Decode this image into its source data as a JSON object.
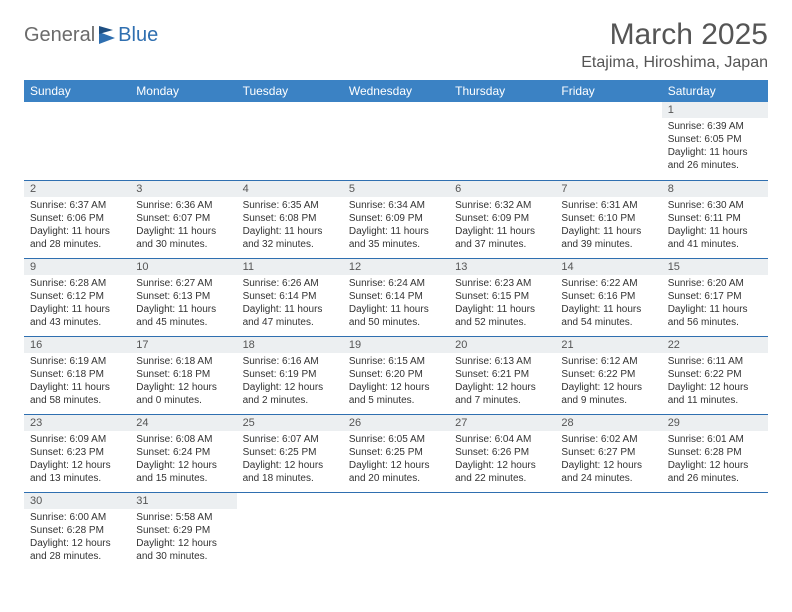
{
  "logo": {
    "part1": "General",
    "part2": "Blue"
  },
  "title": "March 2025",
  "location": "Etajima, Hiroshima, Japan",
  "colors": {
    "header_bg": "#3b82c4",
    "divider": "#2f6fb0",
    "daynum_bg": "#eceff1",
    "text": "#333333",
    "title_text": "#555555"
  },
  "layout": {
    "columns": 7,
    "rows": 6,
    "fontsize_header": 12,
    "fontsize_body": 10,
    "fontsize_title": 30,
    "fontsize_location": 16
  },
  "weekdays": [
    "Sunday",
    "Monday",
    "Tuesday",
    "Wednesday",
    "Thursday",
    "Friday",
    "Saturday"
  ],
  "weeks": [
    [
      null,
      null,
      null,
      null,
      null,
      null,
      {
        "n": "1",
        "sr": "6:39 AM",
        "ss": "6:05 PM",
        "dl": "11 hours and 26 minutes."
      }
    ],
    [
      {
        "n": "2",
        "sr": "6:37 AM",
        "ss": "6:06 PM",
        "dl": "11 hours and 28 minutes."
      },
      {
        "n": "3",
        "sr": "6:36 AM",
        "ss": "6:07 PM",
        "dl": "11 hours and 30 minutes."
      },
      {
        "n": "4",
        "sr": "6:35 AM",
        "ss": "6:08 PM",
        "dl": "11 hours and 32 minutes."
      },
      {
        "n": "5",
        "sr": "6:34 AM",
        "ss": "6:09 PM",
        "dl": "11 hours and 35 minutes."
      },
      {
        "n": "6",
        "sr": "6:32 AM",
        "ss": "6:09 PM",
        "dl": "11 hours and 37 minutes."
      },
      {
        "n": "7",
        "sr": "6:31 AM",
        "ss": "6:10 PM",
        "dl": "11 hours and 39 minutes."
      },
      {
        "n": "8",
        "sr": "6:30 AM",
        "ss": "6:11 PM",
        "dl": "11 hours and 41 minutes."
      }
    ],
    [
      {
        "n": "9",
        "sr": "6:28 AM",
        "ss": "6:12 PM",
        "dl": "11 hours and 43 minutes."
      },
      {
        "n": "10",
        "sr": "6:27 AM",
        "ss": "6:13 PM",
        "dl": "11 hours and 45 minutes."
      },
      {
        "n": "11",
        "sr": "6:26 AM",
        "ss": "6:14 PM",
        "dl": "11 hours and 47 minutes."
      },
      {
        "n": "12",
        "sr": "6:24 AM",
        "ss": "6:14 PM",
        "dl": "11 hours and 50 minutes."
      },
      {
        "n": "13",
        "sr": "6:23 AM",
        "ss": "6:15 PM",
        "dl": "11 hours and 52 minutes."
      },
      {
        "n": "14",
        "sr": "6:22 AM",
        "ss": "6:16 PM",
        "dl": "11 hours and 54 minutes."
      },
      {
        "n": "15",
        "sr": "6:20 AM",
        "ss": "6:17 PM",
        "dl": "11 hours and 56 minutes."
      }
    ],
    [
      {
        "n": "16",
        "sr": "6:19 AM",
        "ss": "6:18 PM",
        "dl": "11 hours and 58 minutes."
      },
      {
        "n": "17",
        "sr": "6:18 AM",
        "ss": "6:18 PM",
        "dl": "12 hours and 0 minutes."
      },
      {
        "n": "18",
        "sr": "6:16 AM",
        "ss": "6:19 PM",
        "dl": "12 hours and 2 minutes."
      },
      {
        "n": "19",
        "sr": "6:15 AM",
        "ss": "6:20 PM",
        "dl": "12 hours and 5 minutes."
      },
      {
        "n": "20",
        "sr": "6:13 AM",
        "ss": "6:21 PM",
        "dl": "12 hours and 7 minutes."
      },
      {
        "n": "21",
        "sr": "6:12 AM",
        "ss": "6:22 PM",
        "dl": "12 hours and 9 minutes."
      },
      {
        "n": "22",
        "sr": "6:11 AM",
        "ss": "6:22 PM",
        "dl": "12 hours and 11 minutes."
      }
    ],
    [
      {
        "n": "23",
        "sr": "6:09 AM",
        "ss": "6:23 PM",
        "dl": "12 hours and 13 minutes."
      },
      {
        "n": "24",
        "sr": "6:08 AM",
        "ss": "6:24 PM",
        "dl": "12 hours and 15 minutes."
      },
      {
        "n": "25",
        "sr": "6:07 AM",
        "ss": "6:25 PM",
        "dl": "12 hours and 18 minutes."
      },
      {
        "n": "26",
        "sr": "6:05 AM",
        "ss": "6:25 PM",
        "dl": "12 hours and 20 minutes."
      },
      {
        "n": "27",
        "sr": "6:04 AM",
        "ss": "6:26 PM",
        "dl": "12 hours and 22 minutes."
      },
      {
        "n": "28",
        "sr": "6:02 AM",
        "ss": "6:27 PM",
        "dl": "12 hours and 24 minutes."
      },
      {
        "n": "29",
        "sr": "6:01 AM",
        "ss": "6:28 PM",
        "dl": "12 hours and 26 minutes."
      }
    ],
    [
      {
        "n": "30",
        "sr": "6:00 AM",
        "ss": "6:28 PM",
        "dl": "12 hours and 28 minutes."
      },
      {
        "n": "31",
        "sr": "5:58 AM",
        "ss": "6:29 PM",
        "dl": "12 hours and 30 minutes."
      },
      null,
      null,
      null,
      null,
      null
    ]
  ],
  "labels": {
    "sunrise": "Sunrise:",
    "sunset": "Sunset:",
    "daylight": "Daylight:"
  }
}
